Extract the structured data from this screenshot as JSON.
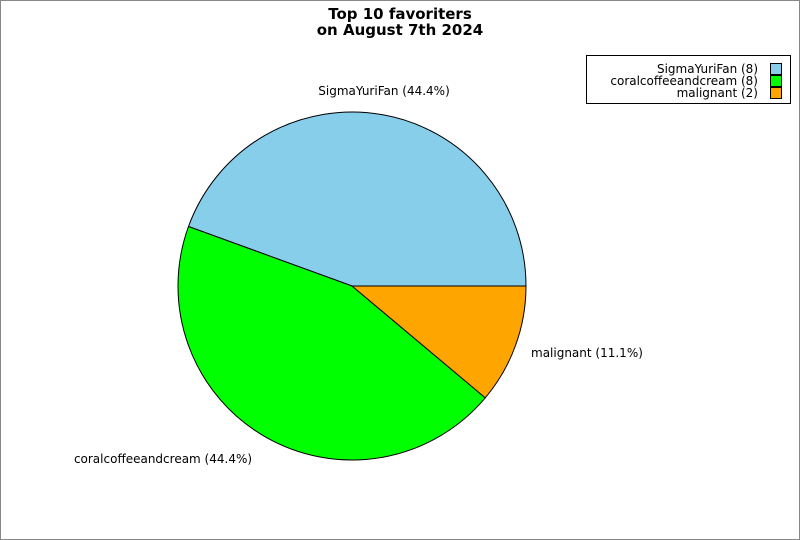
{
  "chart_data": {
    "type": "pie",
    "title": [
      "Top 10 favoriters",
      "on August 7th 2024"
    ],
    "slices": [
      {
        "name": "SigmaYuriFan",
        "value": 8,
        "percent_label": "SigmaYuriFan (44.4%)",
        "legend_label": "SigmaYuriFan (8)",
        "color": "#87CEEB"
      },
      {
        "name": "coralcoffeeandcream",
        "value": 8,
        "percent_label": "coralcoffeeandcream (44.4%)",
        "legend_label": "coralcoffeeandcream (8)",
        "color": "#00FF00"
      },
      {
        "name": "malignant",
        "value": 2,
        "percent_label": "malignant (11.1%)",
        "legend_label": "malignant (2)",
        "color": "#FFA500"
      }
    ],
    "legend_position": "top-right"
  }
}
